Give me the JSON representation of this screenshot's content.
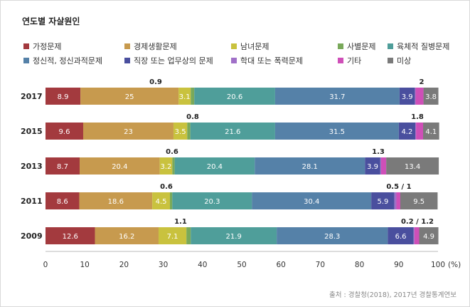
{
  "chart_title": "연도별 자살원인",
  "source": "출처 : 경찰청(2018), 2017년 경찰통계연보",
  "chart_data": {
    "type": "bar",
    "orientation": "horizontal",
    "stacked": true,
    "title": "연도별 자살원인",
    "xlabel": "",
    "ylabel": "",
    "xlim": [
      0,
      100
    ],
    "x_ticks": [
      "0",
      "10",
      "20",
      "30",
      "40",
      "50",
      "60",
      "70",
      "80",
      "90",
      "100"
    ],
    "x_unit": "(%)",
    "categories": [
      "2017",
      "2015",
      "2013",
      "2011",
      "2009"
    ],
    "series": [
      {
        "name": "가정문제",
        "color": "#a33a3e",
        "values": [
          8.9,
          9.6,
          8.7,
          8.6,
          12.6
        ]
      },
      {
        "name": "경제생활문제",
        "color": "#c79a4e",
        "values": [
          25,
          23,
          20.4,
          18.6,
          16.2
        ]
      },
      {
        "name": "남녀문제",
        "color": "#c9c23e",
        "values": [
          3.1,
          3.5,
          3.2,
          4.5,
          7.1
        ]
      },
      {
        "name": "사별문제",
        "color": "#79a95a",
        "values": [
          0.9,
          0.8,
          0.6,
          0.6,
          1.1
        ]
      },
      {
        "name": "육체적 질병문제",
        "color": "#4f9e9a",
        "values": [
          20.6,
          21.6,
          20.4,
          20.3,
          21.9
        ]
      },
      {
        "name": "정신적, 정신과적문제",
        "color": "#5581a8",
        "values": [
          31.7,
          31.5,
          28.1,
          30.4,
          28.3
        ]
      },
      {
        "name": "직장 또는 업무상의 문제",
        "color": "#4a4f9e",
        "values": [
          3.9,
          4.2,
          3.9,
          5.9,
          6.6
        ]
      },
      {
        "name": "학대 또는 폭력문제",
        "color": "#a070c8",
        "values": [
          0.2,
          0.2,
          0.2,
          0.5,
          0.2
        ]
      },
      {
        "name": "기타",
        "color": "#cf4fb8",
        "values": [
          2,
          1.8,
          1.3,
          1,
          1.2
        ]
      },
      {
        "name": "미상",
        "color": "#7a7a7a",
        "values": [
          3.8,
          4.1,
          13.4,
          9.5,
          4.9
        ]
      }
    ],
    "annotations": [
      {
        "category": "2017",
        "text": "0.9"
      },
      {
        "category": "2017",
        "text": "2"
      },
      {
        "category": "2015",
        "text": "0.8"
      },
      {
        "category": "2015",
        "text": "1.8"
      },
      {
        "category": "2013",
        "text": "0.6"
      },
      {
        "category": "2013",
        "text": "1.3"
      },
      {
        "category": "2011",
        "text": "0.6"
      },
      {
        "category": "2011",
        "text": "0.5 / 1"
      },
      {
        "category": "2009",
        "text": "1.1"
      },
      {
        "category": "2009",
        "text": "0.2 / 1.2"
      }
    ],
    "grid": false,
    "legend_position": "top"
  }
}
